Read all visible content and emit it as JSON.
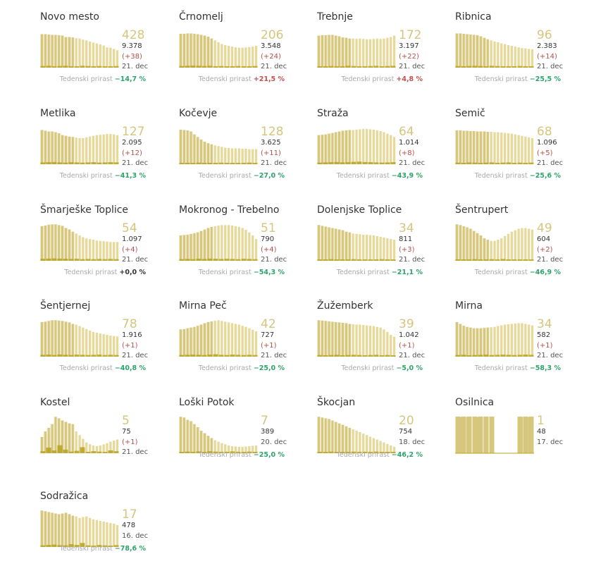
{
  "growth_label": "Tedenski prirast",
  "colors": {
    "area": "#d6c77c",
    "bar": "#e6d99a",
    "bar_stroke": "#ffffff",
    "new": "#b8a11f",
    "pos": "#c0504d",
    "neg": "#2ea36b"
  },
  "chart_data": {
    "type": "bar",
    "unit": "active cases per municipality (sparkline)",
    "municipalities": [
      {
        "name": "Novo mesto",
        "active": "428",
        "total": "9.378",
        "inc": "(+38)",
        "date": "21. dec",
        "growth": "−14,7 %",
        "trend": [
          92,
          92,
          91,
          90,
          90,
          89,
          88,
          84,
          84,
          83,
          81,
          80,
          77,
          75,
          72,
          69,
          67,
          64,
          61,
          56,
          55,
          52,
          48
        ],
        "new": [
          8,
          9,
          7,
          8,
          9,
          7,
          6,
          9,
          8,
          7,
          8,
          7,
          6,
          8
        ]
      },
      {
        "name": "Črnomelj",
        "active": "206",
        "total": "3.548",
        "inc": "(+24)",
        "date": "21. dec",
        "growth": "+21,5 %",
        "trend": [
          93,
          93,
          94,
          94,
          93,
          92,
          90,
          88,
          85,
          80,
          75,
          70,
          65,
          62,
          60,
          58,
          56,
          55,
          55,
          56,
          57,
          58,
          60
        ],
        "new": [
          8,
          9,
          10,
          9,
          8,
          9,
          7,
          8,
          6,
          7,
          8,
          6,
          7,
          8
        ]
      },
      {
        "name": "Trebnje",
        "active": "172",
        "total": "3.197",
        "inc": "(+22)",
        "date": "21. dec",
        "growth": "+4,8 %",
        "trend": [
          88,
          89,
          89,
          90,
          90,
          88,
          86,
          83,
          82,
          80,
          80,
          79,
          80,
          79,
          78,
          78,
          79,
          80,
          79,
          80,
          82,
          84,
          88
        ],
        "new": [
          7,
          6,
          8,
          7,
          6,
          9,
          8,
          7,
          6,
          8,
          9,
          7,
          8,
          9
        ]
      },
      {
        "name": "Ribnica",
        "active": "96",
        "total": "2.383",
        "inc": "(+14)",
        "date": "21. dec",
        "growth": "−25,5 %",
        "trend": [
          94,
          94,
          93,
          92,
          91,
          90,
          89,
          86,
          82,
          78,
          75,
          72,
          70,
          67,
          65,
          62,
          60,
          58,
          56,
          54,
          53,
          52,
          51
        ],
        "new": [
          8,
          7,
          8,
          9,
          8,
          7,
          9,
          8,
          7,
          6,
          7,
          8,
          6,
          7
        ]
      },
      {
        "name": "Metlika",
        "active": "127",
        "total": "2.095",
        "inc": "(+12)",
        "date": "21. dec",
        "growth": "−41,3 %",
        "trend": [
          94,
          92,
          90,
          90,
          88,
          85,
          80,
          78,
          76,
          75,
          73,
          72,
          72,
          74,
          76,
          78,
          80,
          81,
          82,
          83,
          83,
          82,
          80
        ],
        "new": [
          9,
          10,
          11,
          9,
          8,
          10,
          9,
          8,
          9,
          10,
          8,
          9,
          10,
          9
        ]
      },
      {
        "name": "Kočevje",
        "active": "128",
        "total": "3.625",
        "inc": "(+11)",
        "date": "21. dec",
        "growth": "−27,0 %",
        "trend": [
          95,
          94,
          93,
          90,
          82,
          75,
          68,
          62,
          58,
          55,
          52,
          50,
          48,
          46,
          45,
          44,
          44,
          44,
          43,
          43,
          42,
          42,
          42
        ],
        "new": [
          7,
          6,
          7,
          8,
          7,
          6,
          7,
          8,
          6,
          7,
          6,
          7,
          8,
          6
        ]
      },
      {
        "name": "Straža",
        "active": "64",
        "total": "1.014",
        "inc": "(+8)",
        "date": "21. dec",
        "growth": "−43,9 %",
        "trend": [
          80,
          81,
          82,
          84,
          86,
          88,
          90,
          92,
          93,
          94,
          94,
          95,
          96,
          97,
          97,
          96,
          95,
          93,
          91,
          88,
          84,
          80,
          75
        ],
        "new": [
          8,
          9,
          10,
          11,
          9,
          10,
          12,
          13,
          11,
          10,
          9,
          8,
          9,
          10
        ]
      },
      {
        "name": "Semič",
        "active": "68",
        "total": "1.096",
        "inc": "(+5)",
        "date": "21. dec",
        "growth": "−25,6 %",
        "trend": [
          93,
          93,
          92,
          92,
          91,
          91,
          90,
          90,
          90,
          89,
          89,
          88,
          88,
          87,
          86,
          85,
          84,
          82,
          80,
          78,
          76,
          74,
          72
        ],
        "new": [
          8,
          7,
          9,
          8,
          7,
          8,
          9,
          7,
          8,
          9,
          7,
          8,
          7,
          8
        ]
      },
      {
        "name": "Šmarješke Toplice",
        "active": "54",
        "total": "1.097",
        "inc": "(+4)",
        "date": "21. dec",
        "growth": "+0,0 %",
        "trend": [
          95,
          97,
          99,
          100,
          100,
          98,
          96,
          90,
          86,
          80,
          75,
          70,
          65,
          62,
          60,
          58,
          56,
          55,
          54,
          53,
          52,
          52,
          52
        ],
        "new": [
          10,
          11,
          12,
          11,
          10,
          9,
          10,
          8,
          9,
          8,
          9,
          8,
          9,
          8
        ]
      },
      {
        "name": "Mokronog - Trebelno",
        "active": "51",
        "total": "790",
        "inc": "(+4)",
        "date": "21. dec",
        "growth": "−54,3 %",
        "trend": [
          70,
          71,
          72,
          74,
          76,
          78,
          82,
          86,
          90,
          93,
          95,
          97,
          98,
          98,
          98,
          97,
          95,
          93,
          90,
          85,
          78,
          70,
          60
        ],
        "new": [
          8,
          9,
          8,
          10,
          9,
          11,
          10,
          9,
          10,
          9,
          8,
          10,
          9,
          8
        ]
      },
      {
        "name": "Dolenjske Toplice",
        "active": "34",
        "total": "811",
        "inc": "(+3)",
        "date": "21. dec",
        "growth": "−21,1 %",
        "trend": [
          98,
          96,
          94,
          92,
          90,
          88,
          86,
          84,
          80,
          78,
          75,
          74,
          73,
          72,
          72,
          71,
          70,
          68,
          66,
          64,
          62,
          60,
          58
        ],
        "new": [
          7,
          6,
          8,
          7,
          6,
          7,
          8,
          7,
          6,
          7,
          6,
          8,
          7,
          6
        ]
      },
      {
        "name": "Šentrupert",
        "active": "49",
        "total": "604",
        "inc": "(+2)",
        "date": "21. dec",
        "growth": "−46,9 %",
        "trend": [
          100,
          98,
          95,
          92,
          88,
          82,
          76,
          70,
          62,
          58,
          55,
          55,
          58,
          62,
          68,
          74,
          80,
          84,
          88,
          90,
          90,
          88,
          86
        ],
        "new": [
          7,
          6,
          7,
          8,
          7,
          6,
          8,
          7,
          9,
          6,
          7,
          6,
          7,
          6
        ]
      },
      {
        "name": "Šentjernej",
        "active": "78",
        "total": "1.916",
        "inc": "(+1)",
        "date": "21. dec",
        "growth": "−40,8 %",
        "trend": [
          95,
          96,
          98,
          100,
          100,
          99,
          98,
          96,
          94,
          90,
          88,
          84,
          80,
          76,
          72,
          68,
          66,
          64,
          62,
          60,
          58,
          57,
          56
        ],
        "new": [
          9,
          10,
          8,
          11,
          9,
          8,
          10,
          9,
          8,
          9,
          10,
          8,
          9,
          8
        ]
      },
      {
        "name": "Mirna Peč",
        "active": "42",
        "total": "727",
        "inc": "(+1)",
        "date": "21. dec",
        "growth": "−25,0 %",
        "trend": [
          75,
          76,
          78,
          80,
          82,
          85,
          88,
          92,
          95,
          97,
          99,
          100,
          98,
          96,
          94,
          92,
          90,
          88,
          85,
          82,
          78,
          74,
          70
        ],
        "new": [
          8,
          9,
          10,
          9,
          8,
          10,
          12,
          9,
          8,
          10,
          9,
          8,
          9,
          8
        ]
      },
      {
        "name": "Žužemberk",
        "active": "39",
        "total": "1.042",
        "inc": "(+1)",
        "date": "21. dec",
        "growth": "−5,0 %",
        "trend": [
          100,
          99,
          98,
          97,
          96,
          95,
          94,
          93,
          92,
          90,
          89,
          88,
          88,
          87,
          86,
          85,
          84,
          82,
          80,
          75,
          68,
          60,
          55
        ],
        "new": [
          8,
          7,
          8,
          9,
          7,
          8,
          9,
          8,
          7,
          8,
          9,
          7,
          8,
          7
        ]
      },
      {
        "name": "Mirna",
        "active": "34",
        "total": "582",
        "inc": "(+1)",
        "date": "21. dec",
        "growth": "−58,3 %",
        "trend": [
          95,
          90,
          85,
          82,
          80,
          78,
          78,
          78,
          79,
          80,
          81,
          82,
          84,
          86,
          88,
          89,
          90,
          91,
          92,
          92,
          90,
          88,
          86
        ],
        "new": [
          8,
          9,
          7,
          8,
          9,
          10,
          8,
          9,
          10,
          9,
          8,
          9,
          10,
          9
        ]
      },
      {
        "name": "Kostel",
        "active": "5",
        "total": "75",
        "inc": "(+1)",
        "date": "21. dec",
        "growth": "",
        "trend": [
          45,
          60,
          70,
          80,
          100,
          96,
          90,
          86,
          82,
          80,
          60,
          50,
          40,
          30,
          25,
          22,
          20,
          22,
          25,
          28,
          32,
          35,
          38
        ],
        "new": [
          10,
          28,
          14,
          40,
          18,
          8,
          12,
          30,
          6,
          10,
          8,
          6,
          14,
          10
        ]
      },
      {
        "name": "Loški Potok",
        "active": "7",
        "total": "389",
        "inc": "",
        "date": "20. dec",
        "growth": "−25,0 %",
        "trend": [
          100,
          98,
          92,
          88,
          80,
          72,
          62,
          55,
          48,
          42,
          36,
          32,
          28,
          25,
          22,
          20,
          19,
          18,
          18,
          19,
          20,
          21,
          22
        ],
        "new": [
          6,
          8,
          7,
          9,
          6,
          10,
          8,
          7,
          6,
          9,
          7,
          6,
          8,
          7
        ]
      },
      {
        "name": "Škocjan",
        "active": "20",
        "total": "754",
        "inc": "",
        "date": "18. dec",
        "growth": "−46,2 %",
        "trend": [
          100,
          98,
          96,
          94,
          90,
          86,
          82,
          78,
          74,
          70,
          66,
          62,
          58,
          54,
          50,
          46,
          42,
          38,
          34,
          30,
          26,
          22,
          18
        ],
        "new": [
          7,
          6,
          8,
          7,
          6,
          7,
          8,
          6,
          7,
          6,
          8,
          7,
          6,
          7
        ]
      },
      {
        "name": "Osilnica",
        "active": "1",
        "total": "48",
        "inc": "",
        "date": "17. dec",
        "growth": "",
        "trend": [
          100,
          100,
          100,
          100,
          100,
          100,
          100,
          100,
          100,
          100,
          100,
          0,
          0,
          0,
          0,
          0,
          0,
          0,
          0,
          100,
          100,
          100,
          100
        ],
        "new": [
          100,
          100,
          100,
          100,
          100,
          100,
          100,
          0,
          0,
          0,
          0,
          100,
          100,
          100
        ]
      },
      {
        "name": "Sodražica",
        "active": "17",
        "total": "478",
        "inc": "",
        "date": "16. dec",
        "growth": "−78,6 %",
        "trend": [
          100,
          98,
          96,
          94,
          92,
          90,
          92,
          94,
          90,
          86,
          84,
          80,
          82,
          84,
          80,
          76,
          74,
          72,
          70,
          68,
          66,
          64,
          60
        ],
        "new": [
          8,
          10,
          12,
          9,
          8,
          14,
          10,
          20,
          8,
          6,
          10,
          8,
          7,
          9
        ]
      }
    ]
  }
}
